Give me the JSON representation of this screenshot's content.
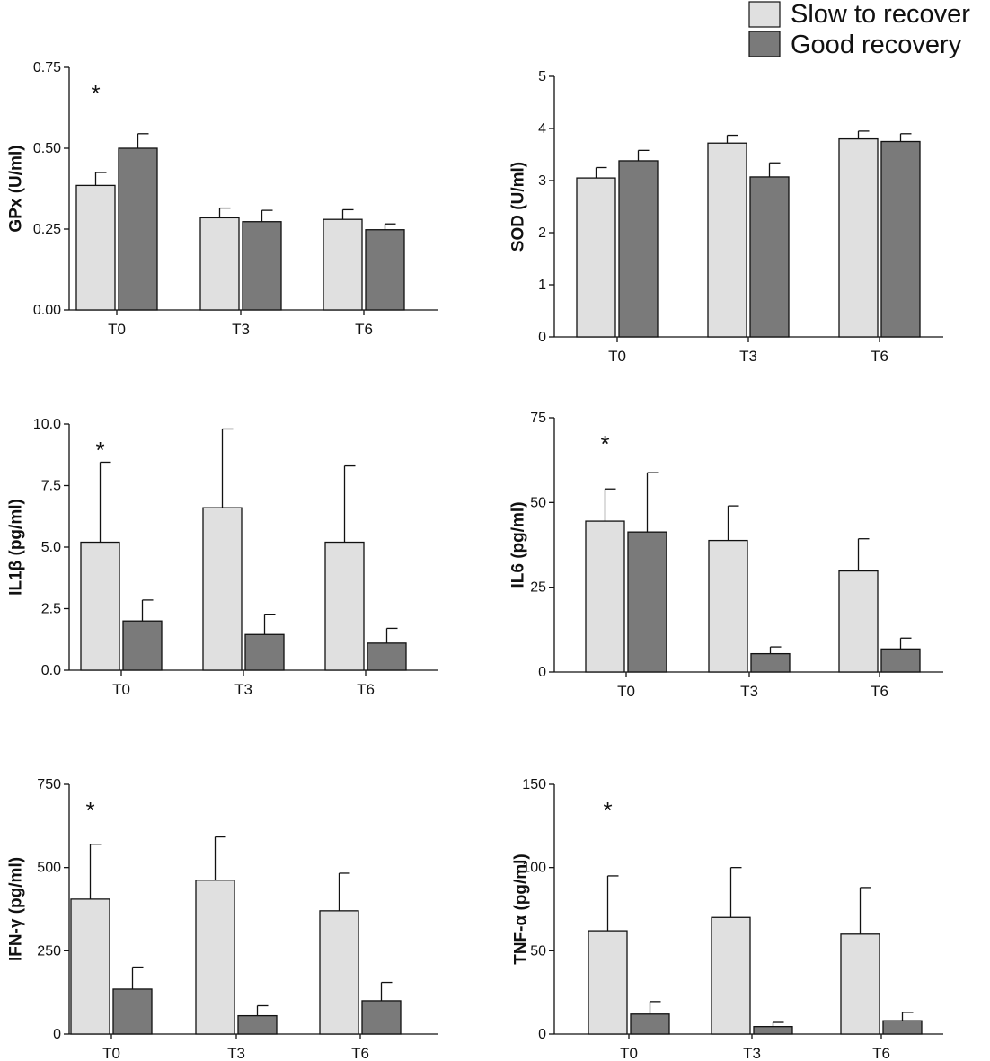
{
  "legend": {
    "entries": [
      {
        "label": "Slow to recover",
        "color": "#e0e0e0"
      },
      {
        "label": "Good recovery",
        "color": "#7a7a7a"
      }
    ]
  },
  "colors": {
    "axis": "#111111",
    "bar_stroke": "#111111"
  },
  "chart_data": [
    {
      "type": "bar",
      "ylabel": "GPx (U/ml)",
      "categories": [
        "T0",
        "T3",
        "T6"
      ],
      "ylim": [
        0,
        0.75
      ],
      "yticks": [
        0.0,
        0.25,
        0.5,
        0.75
      ],
      "ytick_labels": [
        "0.00",
        "0.25",
        "0.50",
        "0.75"
      ],
      "series": [
        {
          "name": "Slow to recover",
          "values": [
            0.385,
            0.285,
            0.28
          ],
          "errors": [
            0.04,
            0.03,
            0.03
          ]
        },
        {
          "name": "Good recovery",
          "values": [
            0.5,
            0.273,
            0.248
          ],
          "errors": [
            0.045,
            0.035,
            0.018
          ]
        }
      ],
      "annotations": [
        {
          "text": "*",
          "category": "T0"
        }
      ]
    },
    {
      "type": "bar",
      "ylabel": "SOD (U/ml)",
      "categories": [
        "T0",
        "T3",
        "T6"
      ],
      "ylim": [
        0,
        5
      ],
      "yticks": [
        0,
        1,
        2,
        3,
        4,
        5
      ],
      "ytick_labels": [
        "0",
        "1",
        "2",
        "3",
        "4",
        "5"
      ],
      "series": [
        {
          "name": "Slow to recover",
          "values": [
            3.05,
            3.72,
            3.8
          ],
          "errors": [
            0.2,
            0.15,
            0.15
          ]
        },
        {
          "name": "Good recovery",
          "values": [
            3.38,
            3.07,
            3.75
          ],
          "errors": [
            0.2,
            0.27,
            0.15
          ]
        }
      ],
      "annotations": []
    },
    {
      "type": "bar",
      "ylabel": "IL1β (pg/ml)",
      "categories": [
        "T0",
        "T3",
        "T6"
      ],
      "ylim": [
        0,
        10
      ],
      "yticks": [
        0,
        2.5,
        5,
        7.5,
        10
      ],
      "ytick_labels": [
        "0.0",
        "2.5",
        "5.0",
        "7.5",
        "10.0"
      ],
      "series": [
        {
          "name": "Slow to recover",
          "values": [
            5.2,
            6.6,
            5.2
          ],
          "errors": [
            3.25,
            3.2,
            3.1
          ]
        },
        {
          "name": "Good recovery",
          "values": [
            2.0,
            1.45,
            1.1
          ],
          "errors": [
            0.85,
            0.8,
            0.6
          ]
        }
      ],
      "annotations": [
        {
          "text": "*",
          "category": "T0"
        }
      ]
    },
    {
      "type": "bar",
      "ylabel": "IL6 (pg/ml)",
      "categories": [
        "T0",
        "T3",
        "T6"
      ],
      "ylim": [
        0,
        75
      ],
      "yticks": [
        0,
        25,
        50,
        75
      ],
      "ytick_labels": [
        "0",
        "25",
        "50",
        "75"
      ],
      "series": [
        {
          "name": "Slow to recover",
          "values": [
            44.5,
            38.8,
            29.8
          ],
          "errors": [
            9.5,
            10.2,
            9.5
          ]
        },
        {
          "name": "Good recovery",
          "values": [
            41.3,
            5.4,
            6.8
          ],
          "errors": [
            17.5,
            2.0,
            3.2
          ]
        }
      ],
      "annotations": [
        {
          "text": "*",
          "category": "T0"
        }
      ]
    },
    {
      "type": "bar",
      "ylabel": "IFN-γ (pg/ml)",
      "categories": [
        "T0",
        "T3",
        "T6"
      ],
      "ylim": [
        0,
        750
      ],
      "yticks": [
        0,
        250,
        500,
        750
      ],
      "ytick_labels": [
        "0",
        "250",
        "500",
        "750"
      ],
      "series": [
        {
          "name": "Slow to recover",
          "values": [
            405,
            462,
            370
          ],
          "errors": [
            165,
            130,
            113
          ]
        },
        {
          "name": "Good recovery",
          "values": [
            135,
            55,
            100
          ],
          "errors": [
            66,
            30,
            55
          ]
        }
      ],
      "annotations": [
        {
          "text": "*",
          "category": "T0"
        }
      ]
    },
    {
      "type": "bar",
      "ylabel": "TNF-α (pg/ml)",
      "categories": [
        "T0",
        "T3",
        "T6"
      ],
      "ylim": [
        0,
        150
      ],
      "yticks": [
        0,
        50,
        100,
        150
      ],
      "ytick_labels": [
        "0",
        "50",
        "100",
        "150"
      ],
      "series": [
        {
          "name": "Slow to recover",
          "values": [
            62,
            70,
            60
          ],
          "errors": [
            33,
            30,
            28
          ]
        },
        {
          "name": "Good recovery",
          "values": [
            12,
            4.5,
            8
          ],
          "errors": [
            7.5,
            2.5,
            5
          ]
        }
      ],
      "annotations": [
        {
          "text": "*",
          "category": "T0"
        }
      ]
    }
  ]
}
